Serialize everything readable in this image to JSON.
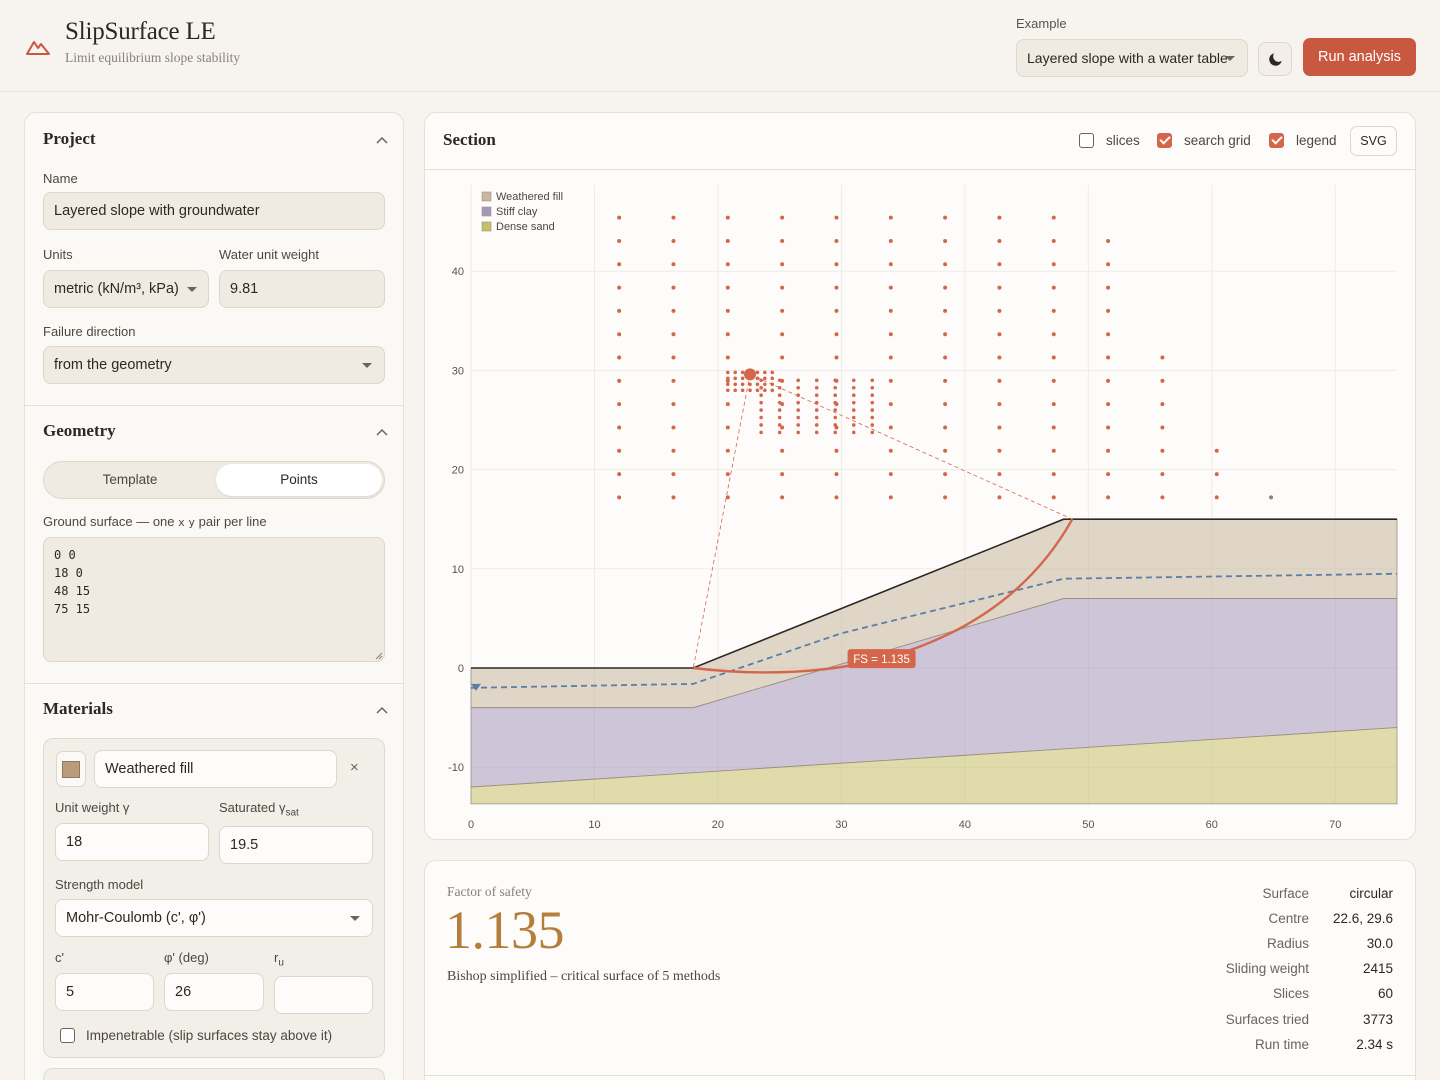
{
  "app": {
    "title": "SlipSurface LE",
    "subtitle": "Limit equilibrium slope stability",
    "example_label": "Example",
    "example_value": "Layered slope with a water table",
    "run_label": "Run analysis"
  },
  "project": {
    "title": "Project",
    "name_label": "Name",
    "name_value": "Layered slope with groundwater",
    "units_label": "Units",
    "units_value": "metric (kN/m³, kPa)",
    "water_label": "Water unit weight",
    "water_value": "9.81",
    "direction_label": "Failure direction",
    "direction_value": "from the geometry"
  },
  "geometry": {
    "title": "Geometry",
    "tabs": [
      "Template",
      "Points"
    ],
    "active_tab": "Points",
    "ground_label_prefix": "Ground surface — one",
    "ground_label_x": "x",
    "ground_label_y": "y",
    "ground_label_suffix": "pair per line",
    "points_text": "0 0\n18 0\n48 15\n75 15"
  },
  "materials": {
    "title": "Materials",
    "items": [
      {
        "name": "Weathered fill",
        "color": "#b89c7b",
        "unit_weight_label": "Unit weight γ",
        "unit_weight": "18",
        "sat_label": "Saturated γ",
        "sat_sub": "sat",
        "sat_value": "19.5",
        "strength_label": "Strength model",
        "strength_value": "Mohr-Coulomb (c', φ')",
        "c_label": "c'",
        "c_value": "5",
        "phi_label": "φ' (deg)",
        "phi_value": "26",
        "ru_label": "r",
        "ru_sub": "u",
        "ru_value": "",
        "impenetrable_label": "Impenetrable (slip surfaces stay above it)",
        "impenetrable": false
      }
    ]
  },
  "section": {
    "title": "Section",
    "toggles": [
      {
        "label": "slices",
        "checked": false
      },
      {
        "label": "search grid",
        "checked": true
      },
      {
        "label": "legend",
        "checked": true
      }
    ],
    "export_label": "SVG",
    "fs_badge": "FS = 1.135"
  },
  "chart_data": {
    "type": "cross-section",
    "x_ticks": [
      0,
      10,
      20,
      30,
      40,
      50,
      60,
      70
    ],
    "y_ticks": [
      -10,
      0,
      10,
      20,
      30,
      40
    ],
    "xlim": [
      0,
      75
    ],
    "ylim": [
      -13.5,
      49
    ],
    "ground_surface": [
      [
        0,
        0
      ],
      [
        18,
        0
      ],
      [
        48,
        15
      ],
      [
        75,
        15
      ]
    ],
    "layers": [
      {
        "name": "Weathered fill",
        "color": "#c9b79d",
        "top": [
          [
            0,
            0
          ],
          [
            18,
            0
          ],
          [
            48,
            15
          ],
          [
            75,
            15
          ]
        ],
        "bottom": [
          [
            0,
            -4
          ],
          [
            18,
            -4
          ],
          [
            48,
            7
          ],
          [
            75,
            7
          ]
        ]
      },
      {
        "name": "Stiff clay",
        "color": "#a897bd",
        "top": [
          [
            0,
            -4
          ],
          [
            18,
            -4
          ],
          [
            48,
            7
          ],
          [
            75,
            7
          ]
        ],
        "bottom": [
          [
            0,
            -12
          ],
          [
            75,
            -6
          ]
        ]
      },
      {
        "name": "Dense sand",
        "color": "#c6c06a",
        "top": [
          [
            0,
            -12
          ],
          [
            75,
            -6
          ]
        ],
        "bottom": [
          [
            0,
            -13.7
          ],
          [
            75,
            -13.7
          ]
        ]
      }
    ],
    "water_table": [
      [
        0,
        -2
      ],
      [
        18,
        -1.6
      ],
      [
        30,
        3.5
      ],
      [
        48,
        9
      ],
      [
        75,
        9.5
      ]
    ],
    "critical_surface": {
      "center": [
        22.6,
        29.6
      ],
      "radius": 30.0,
      "entry": [
        18,
        0
      ],
      "exit": [
        48.7,
        15
      ]
    },
    "search_grid": {
      "coarse_x": [
        12,
        16.4,
        20.8,
        25.2,
        29.6,
        34,
        38.4,
        42.8,
        47.2,
        51.6,
        56,
        60.4,
        64.8
      ],
      "fine_region": {
        "x": [
          20.8,
          29.6
        ],
        "y": [
          24.5,
          29.8
        ]
      }
    },
    "legend": [
      "Weathered fill",
      "Stiff clay",
      "Dense sand"
    ]
  },
  "results": {
    "fs_label": "Factor of safety",
    "fs_value": "1.135",
    "method_desc": "Bishop simplified – critical surface of 5 methods",
    "stats": [
      {
        "key": "Surface",
        "value": "circular"
      },
      {
        "key": "Centre",
        "value": "22.6, 29.6"
      },
      {
        "key": "Radius",
        "value": "30.0"
      },
      {
        "key": "Sliding weight",
        "value": "2415"
      },
      {
        "key": "Slices",
        "value": "60"
      },
      {
        "key": "Surfaces tried",
        "value": "3773"
      },
      {
        "key": "Run time",
        "value": "2.34 s"
      }
    ]
  },
  "colors": {
    "accent": "#c8583f",
    "fs_value": "#b57e3c",
    "water": "#5a7ea6",
    "grid_point": "#d4664c"
  }
}
